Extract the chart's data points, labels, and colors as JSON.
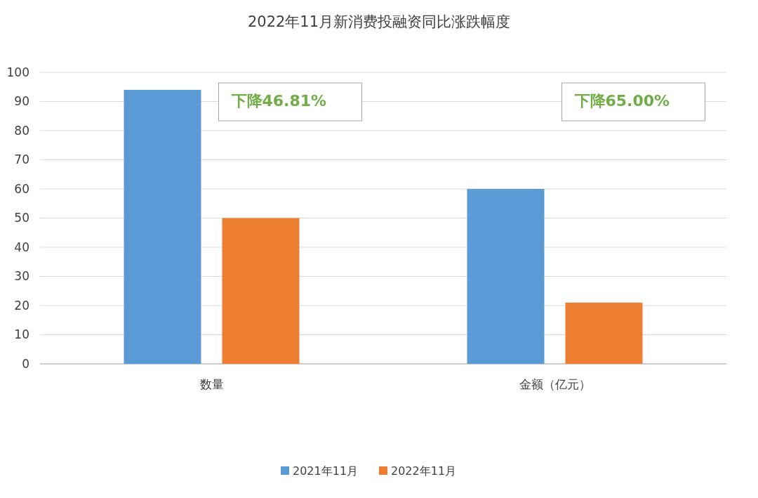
{
  "chart_data": {
    "type": "bar",
    "title": "2022年11月新消费投融资同比涨跌幅度",
    "categories": [
      "数量",
      "金额（亿元）"
    ],
    "series": [
      {
        "name": "2021年11月",
        "color": "#5b9bd5",
        "values": [
          94,
          60
        ]
      },
      {
        "name": "2022年11月",
        "color": "#ed7d31",
        "values": [
          50,
          21
        ]
      }
    ],
    "ylim": [
      0,
      100
    ],
    "yticks": [
      0,
      10,
      20,
      30,
      40,
      50,
      60,
      70,
      80,
      90,
      100
    ],
    "grid": "y",
    "legend": "bottom",
    "annotations": [
      "下降46.81%",
      "下降65.00%"
    ]
  }
}
